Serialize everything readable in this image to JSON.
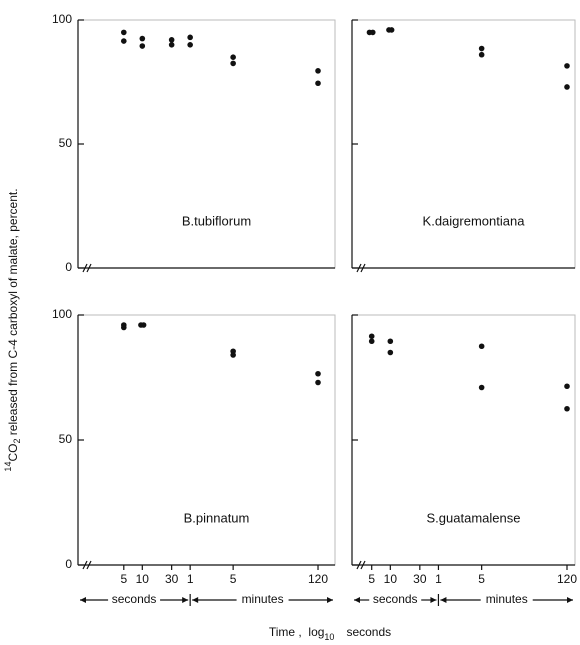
{
  "chart_data": [
    {
      "type": "scatter",
      "title": "B.tubiflorum",
      "log_x": true,
      "color": "#111111",
      "x": [
        5,
        5,
        10,
        10,
        30,
        30,
        60,
        60,
        300,
        300,
        7200,
        7200
      ],
      "values": [
        95,
        91.5,
        92.5,
        89.5,
        92,
        90,
        93,
        90,
        85,
        82.5,
        79.5,
        74.5
      ],
      "xlim": [
        0.9,
        13600
      ],
      "ylim": [
        0,
        100
      ],
      "yticks": [
        0,
        50,
        100
      ]
    },
    {
      "type": "scatter",
      "title": "K.daigremontiana",
      "log_x": true,
      "color": "#111111",
      "x": [
        4.6,
        5.2,
        9.5,
        10.5,
        300,
        300,
        7200,
        7200
      ],
      "values": [
        95,
        95,
        96,
        96,
        88.5,
        86,
        81.5,
        73
      ],
      "xlim": [
        2.4,
        9700
      ],
      "ylim": [
        0,
        100
      ]
    },
    {
      "type": "scatter",
      "title": "B.pinnatum",
      "log_x": true,
      "color": "#111111",
      "x": [
        5,
        5,
        9.5,
        10.5,
        300,
        300,
        7200,
        7200
      ],
      "values": [
        96,
        95,
        96,
        96,
        85.5,
        84,
        76.5,
        73
      ],
      "xlim": [
        0.9,
        13600
      ],
      "ylim": [
        0,
        100
      ],
      "yticks": [
        0,
        50,
        100
      ],
      "xticks": [
        5,
        10,
        30,
        {
          "value": 60,
          "label": "1"
        },
        {
          "value": 300,
          "label": "5"
        },
        {
          "value": 7200,
          "label": "120"
        }
      ]
    },
    {
      "type": "scatter",
      "title": "S.guatamalense",
      "log_x": true,
      "color": "#111111",
      "x": [
        5,
        5,
        10,
        10,
        300,
        300,
        7200,
        7200
      ],
      "values": [
        91.5,
        89.5,
        89.5,
        85,
        87.5,
        71,
        71.5,
        62.5
      ],
      "xlim": [
        2.4,
        9700
      ],
      "ylim": [
        0,
        100
      ],
      "xticks": [
        5,
        10,
        30,
        {
          "value": 60,
          "label": "1"
        },
        {
          "value": 300,
          "label": "5"
        },
        {
          "value": 7200,
          "label": "120"
        }
      ]
    }
  ],
  "period_labels": [
    "seconds",
    "minutes"
  ],
  "xlabel": {
    "main": "Time ,  log",
    "sub": "10",
    "end": "seconds"
  },
  "ylabel": {
    "sup": "14",
    "main": "CO",
    "sub": "2",
    "rest": " released from C-4 carboxyl of malate, percent."
  }
}
